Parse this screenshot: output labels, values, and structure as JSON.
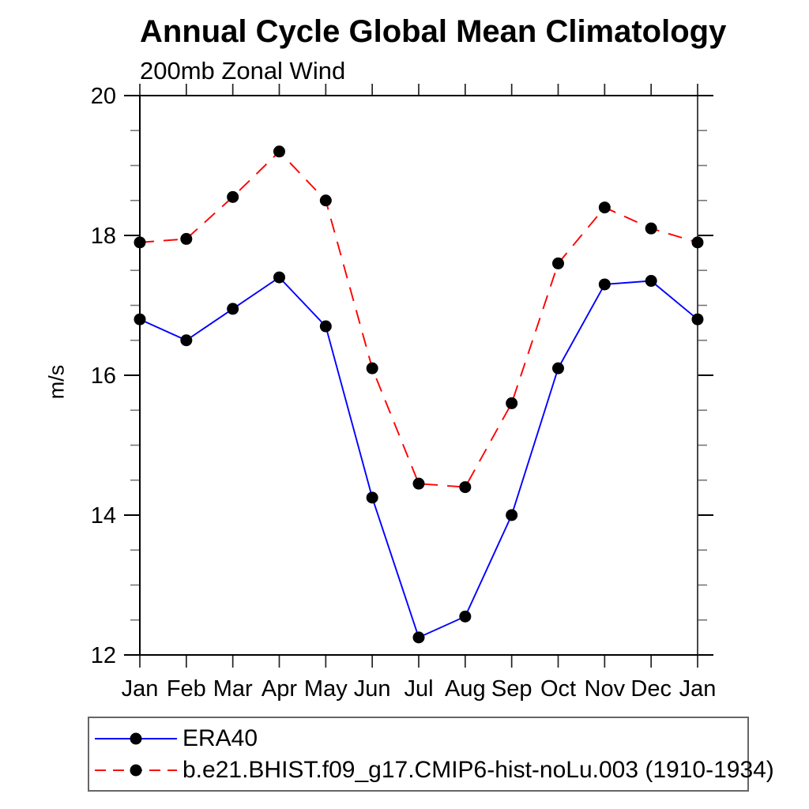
{
  "page": {
    "background": "#ffffff"
  },
  "chart_data": {
    "type": "line",
    "title": "Annual Cycle Global Mean Climatology",
    "subtitle": "200mb Zonal Wind",
    "ylabel": "m/s",
    "xlabel": "",
    "categories": [
      "Jan",
      "Feb",
      "Mar",
      "Apr",
      "May",
      "Jun",
      "Jul",
      "Aug",
      "Sep",
      "Oct",
      "Nov",
      "Dec",
      "Jan"
    ],
    "ylim": [
      12,
      20
    ],
    "ytick_major": [
      12,
      14,
      16,
      18,
      20
    ],
    "ytick_minor_step": 0.5,
    "grid": false,
    "legend_position": "bottom",
    "marker": "filled-circle",
    "marker_color": "#000000",
    "series": [
      {
        "name": "ERA40",
        "color": "#0000ff",
        "style": "solid",
        "values": [
          16.8,
          16.5,
          16.95,
          17.4,
          16.7,
          14.25,
          12.25,
          12.55,
          14.0,
          16.1,
          17.3,
          17.35,
          16.8
        ]
      },
      {
        "name": "b.e21.BHIST.f09_g17.CMIP6-hist-noLu.003 (1910-1934)",
        "color": "#ff0000",
        "style": "dashed",
        "values": [
          17.9,
          17.95,
          18.55,
          19.2,
          18.5,
          16.1,
          14.45,
          14.4,
          15.6,
          17.6,
          18.4,
          18.1,
          17.9
        ]
      }
    ]
  }
}
